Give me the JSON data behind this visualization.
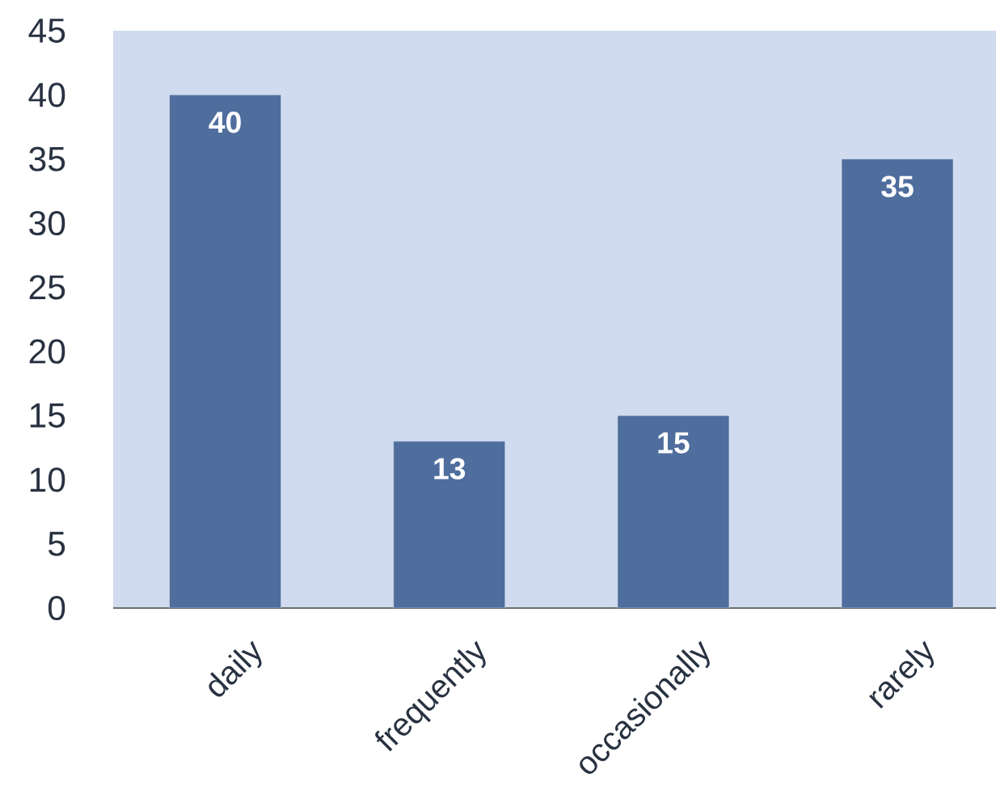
{
  "chart_data": {
    "type": "bar",
    "categories": [
      "daily",
      "frequently",
      "occasionally",
      "rarely"
    ],
    "values": [
      40,
      13,
      15,
      35
    ],
    "color": "#4f6e9e",
    "ylim": [
      0,
      45
    ],
    "yticks": [
      0,
      5,
      10,
      15,
      20,
      25,
      30,
      35,
      40,
      45
    ],
    "data_labels": true
  }
}
